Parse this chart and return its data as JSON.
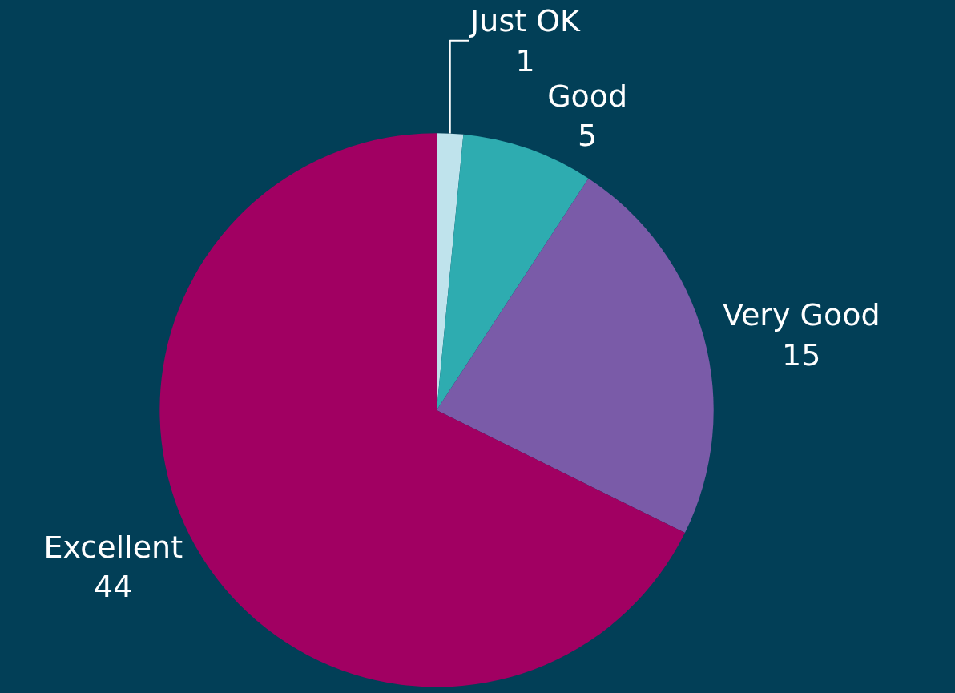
{
  "chart_data": {
    "type": "pie",
    "categories": [
      "Just OK",
      "Good",
      "Very Good",
      "Excellent"
    ],
    "values": [
      1,
      5,
      15,
      44
    ],
    "colors": [
      "#bfe3ec",
      "#2eacb0",
      "#7a5ba8",
      "#a10062"
    ],
    "data_labels": true,
    "legend": false
  }
}
